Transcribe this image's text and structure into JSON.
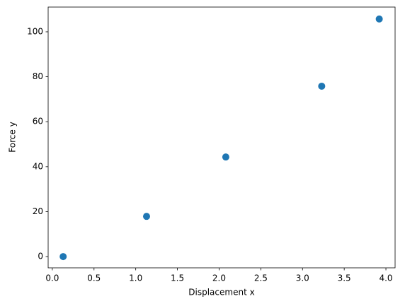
{
  "chart_data": {
    "type": "scatter",
    "xlabel": "Displacement x",
    "ylabel": "Force y",
    "x": [
      0.13,
      1.13,
      2.08,
      3.23,
      3.92
    ],
    "y": [
      0,
      17.9,
      44.3,
      75.8,
      105.7
    ],
    "color": "#1f77b4",
    "xlim": [
      -0.05,
      4.11
    ],
    "ylim": [
      -5,
      111
    ],
    "xticks": [
      {
        "value": 0,
        "label": "0.0"
      },
      {
        "value": 0.5,
        "label": "0.5"
      },
      {
        "value": 1,
        "label": "1.0"
      },
      {
        "value": 1.5,
        "label": "1.5"
      },
      {
        "value": 2,
        "label": "2.0"
      },
      {
        "value": 2.5,
        "label": "2.5"
      },
      {
        "value": 3,
        "label": "3.0"
      },
      {
        "value": 3.5,
        "label": "3.5"
      },
      {
        "value": 4,
        "label": "4.0"
      }
    ],
    "yticks": [
      0,
      20,
      40,
      60,
      80,
      100
    ],
    "grid": false
  }
}
